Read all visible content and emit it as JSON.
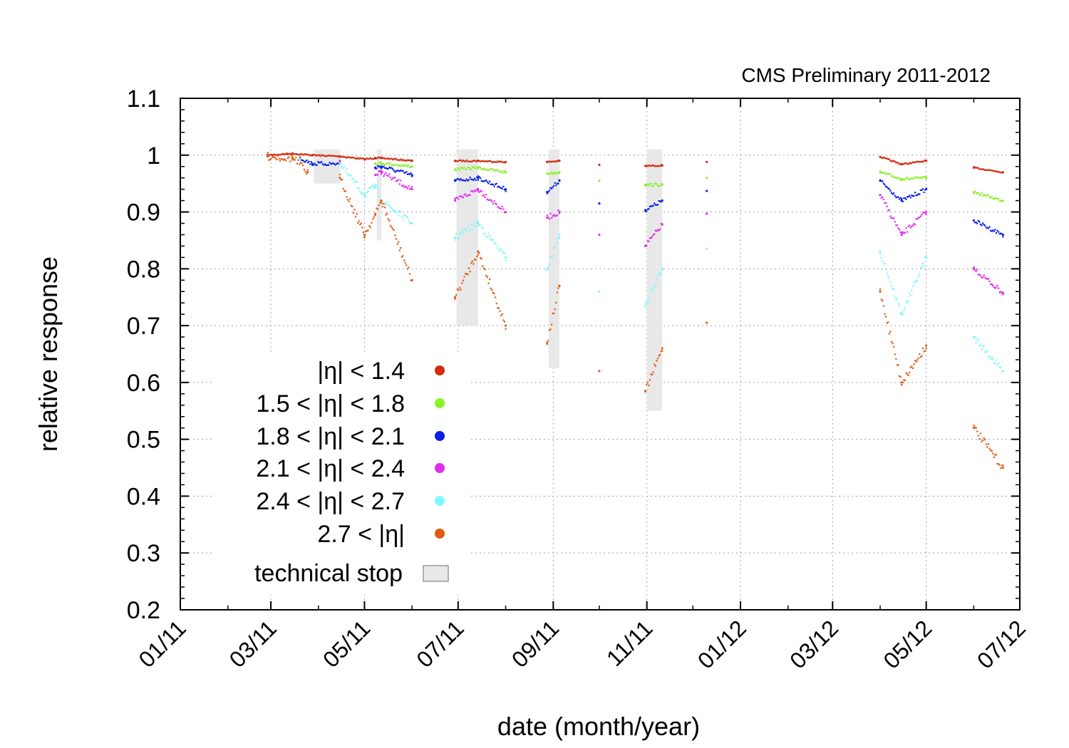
{
  "chart_data": {
    "type": "scatter",
    "title": "",
    "annotation": "CMS Preliminary 2011-2012",
    "xlabel": "date (month/year)",
    "ylabel": "relative response",
    "xlim": [
      "2011-01-01",
      "2012-07-01"
    ],
    "ylim": [
      0.2,
      1.1
    ],
    "grid": true,
    "legend_position": "bottom-left",
    "x_ticks": [
      "01/11",
      "03/11",
      "05/11",
      "07/11",
      "09/11",
      "11/11",
      "01/12",
      "03/12",
      "05/12",
      "07/12"
    ],
    "y_ticks": [
      "0.2",
      "0.3",
      "0.4",
      "0.5",
      "0.6",
      "0.7",
      "0.8",
      "0.9",
      "1",
      "1.1"
    ],
    "technical_stop_label": "technical stop",
    "technical_stops": [
      {
        "start": "2011-03-29",
        "end": "2011-04-15",
        "y_low": 0.95,
        "y_high": 1.01
      },
      {
        "start": "2011-05-09",
        "end": "2011-05-12",
        "y_low": 0.85,
        "y_high": 1.01
      },
      {
        "start": "2011-06-30",
        "end": "2011-07-14",
        "y_low": 0.7,
        "y_high": 1.01
      },
      {
        "start": "2011-08-29",
        "end": "2011-09-05",
        "y_low": 0.625,
        "y_high": 1.01
      },
      {
        "start": "2011-11-01",
        "end": "2011-11-11",
        "y_low": 0.55,
        "y_high": 1.01
      }
    ],
    "series": [
      {
        "name": "|η| < 1.4",
        "color": "#d42a0d",
        "points": [
          [
            "2011-02-27",
            1.0
          ],
          [
            "2011-03-15",
            1.003
          ],
          [
            "2011-03-28",
            1.0
          ],
          [
            "2011-04-15",
            0.998
          ],
          [
            "2011-05-01",
            0.993
          ],
          [
            "2011-05-08",
            0.995
          ],
          [
            "2011-05-12",
            0.995
          ],
          [
            "2011-06-01",
            0.99
          ],
          [
            "2011-06-29",
            0.99
          ],
          [
            "2011-07-14",
            0.99
          ],
          [
            "2011-08-01",
            0.988
          ],
          [
            "2011-08-28",
            0.988
          ],
          [
            "2011-09-05",
            0.99
          ],
          [
            "2011-10-01",
            0.983
          ],
          [
            "2011-10-31",
            0.981
          ],
          [
            "2011-11-11",
            0.982
          ],
          [
            "2011-12-10",
            0.988
          ],
          [
            "2012-04-01",
            0.997
          ],
          [
            "2012-04-15",
            0.984
          ],
          [
            "2012-05-01",
            0.99
          ],
          [
            "2012-06-01",
            0.978
          ],
          [
            "2012-06-20",
            0.97
          ]
        ]
      },
      {
        "name": "1.5 < |η| < 1.8",
        "color": "#8cf22c",
        "points": [
          [
            "2011-02-27",
            0.998
          ],
          [
            "2011-03-20",
            0.998
          ],
          [
            "2011-04-15",
            0.99
          ],
          [
            "2011-05-08",
            0.985
          ],
          [
            "2011-05-12",
            0.986
          ],
          [
            "2011-06-01",
            0.98
          ],
          [
            "2011-06-29",
            0.975
          ],
          [
            "2011-07-14",
            0.978
          ],
          [
            "2011-08-01",
            0.97
          ],
          [
            "2011-08-28",
            0.968
          ],
          [
            "2011-09-05",
            0.97
          ],
          [
            "2011-10-01",
            0.955
          ],
          [
            "2011-10-31",
            0.948
          ],
          [
            "2011-11-11",
            0.948
          ],
          [
            "2011-12-10",
            0.96
          ],
          [
            "2012-04-01",
            0.97
          ],
          [
            "2012-04-15",
            0.958
          ],
          [
            "2012-05-01",
            0.96
          ],
          [
            "2012-06-01",
            0.935
          ],
          [
            "2012-06-20",
            0.92
          ]
        ]
      },
      {
        "name": "1.8 < |η| < 2.1",
        "color": "#0a1ee6",
        "points": [
          [
            "2011-02-27",
            0.998
          ],
          [
            "2011-03-20",
            0.995
          ],
          [
            "2011-03-28",
            0.985
          ],
          [
            "2011-04-15",
            0.985
          ],
          [
            "2011-05-08",
            0.978
          ],
          [
            "2011-05-12",
            0.98
          ],
          [
            "2011-06-01",
            0.965
          ],
          [
            "2011-06-29",
            0.955
          ],
          [
            "2011-07-14",
            0.96
          ],
          [
            "2011-08-01",
            0.94
          ],
          [
            "2011-08-28",
            0.935
          ],
          [
            "2011-09-05",
            0.955
          ],
          [
            "2011-10-01",
            0.915
          ],
          [
            "2011-10-31",
            0.903
          ],
          [
            "2011-11-11",
            0.92
          ],
          [
            "2011-12-10",
            0.937
          ],
          [
            "2012-04-01",
            0.955
          ],
          [
            "2012-04-15",
            0.92
          ],
          [
            "2012-05-01",
            0.94
          ],
          [
            "2012-06-01",
            0.885
          ],
          [
            "2012-06-20",
            0.86
          ]
        ]
      },
      {
        "name": "2.1 < |η| < 2.4",
        "color": "#e02ee8",
        "points": [
          [
            "2011-02-27",
            0.998
          ],
          [
            "2011-03-20",
            0.995
          ],
          [
            "2011-04-15",
            0.99
          ],
          [
            "2011-05-08",
            0.965
          ],
          [
            "2011-05-12",
            0.97
          ],
          [
            "2011-06-01",
            0.94
          ],
          [
            "2011-06-29",
            0.92
          ],
          [
            "2011-07-14",
            0.94
          ],
          [
            "2011-08-01",
            0.9
          ],
          [
            "2011-08-28",
            0.89
          ],
          [
            "2011-09-05",
            0.9
          ],
          [
            "2011-10-01",
            0.86
          ],
          [
            "2011-10-31",
            0.84
          ],
          [
            "2011-11-11",
            0.878
          ],
          [
            "2011-12-10",
            0.897
          ],
          [
            "2012-04-01",
            0.93
          ],
          [
            "2012-04-15",
            0.86
          ],
          [
            "2012-05-01",
            0.9
          ],
          [
            "2012-06-01",
            0.8
          ],
          [
            "2012-06-20",
            0.758
          ]
        ]
      },
      {
        "name": "2.4 < |η| < 2.7",
        "color": "#80f8fa",
        "points": [
          [
            "2011-02-27",
            0.998
          ],
          [
            "2011-03-20",
            0.993
          ],
          [
            "2011-04-15",
            0.985
          ],
          [
            "2011-05-01",
            0.93
          ],
          [
            "2011-05-08",
            0.945
          ],
          [
            "2011-05-12",
            0.92
          ],
          [
            "2011-06-01",
            0.88
          ],
          [
            "2011-06-29",
            0.855
          ],
          [
            "2011-07-14",
            0.88
          ],
          [
            "2011-08-01",
            0.82
          ],
          [
            "2011-08-28",
            0.8
          ],
          [
            "2011-09-05",
            0.86
          ],
          [
            "2011-10-01",
            0.76
          ],
          [
            "2011-10-31",
            0.735
          ],
          [
            "2011-11-11",
            0.8
          ],
          [
            "2011-12-10",
            0.835
          ],
          [
            "2012-04-01",
            0.83
          ],
          [
            "2012-04-15",
            0.72
          ],
          [
            "2012-05-01",
            0.82
          ],
          [
            "2012-06-01",
            0.68
          ],
          [
            "2012-06-20",
            0.62
          ]
        ]
      },
      {
        "name": "2.7 < |η|",
        "color": "#e05a12",
        "points": [
          [
            "2011-02-27",
            0.998
          ],
          [
            "2011-03-15",
            0.995
          ],
          [
            "2011-03-25",
            0.97
          ],
          [
            "2011-04-15",
            0.96
          ],
          [
            "2011-05-01",
            0.86
          ],
          [
            "2011-05-08",
            0.895
          ],
          [
            "2011-05-12",
            0.92
          ],
          [
            "2011-06-01",
            0.78
          ],
          [
            "2011-06-29",
            0.75
          ],
          [
            "2011-07-14",
            0.83
          ],
          [
            "2011-08-01",
            0.7
          ],
          [
            "2011-08-28",
            0.67
          ],
          [
            "2011-09-05",
            0.77
          ],
          [
            "2011-10-01",
            0.62
          ],
          [
            "2011-10-31",
            0.585
          ],
          [
            "2011-11-11",
            0.66
          ],
          [
            "2011-12-10",
            0.705
          ],
          [
            "2012-04-01",
            0.76
          ],
          [
            "2012-04-15",
            0.6
          ],
          [
            "2012-05-01",
            0.665
          ],
          [
            "2012-06-01",
            0.52
          ],
          [
            "2012-06-20",
            0.45
          ]
        ]
      }
    ]
  }
}
